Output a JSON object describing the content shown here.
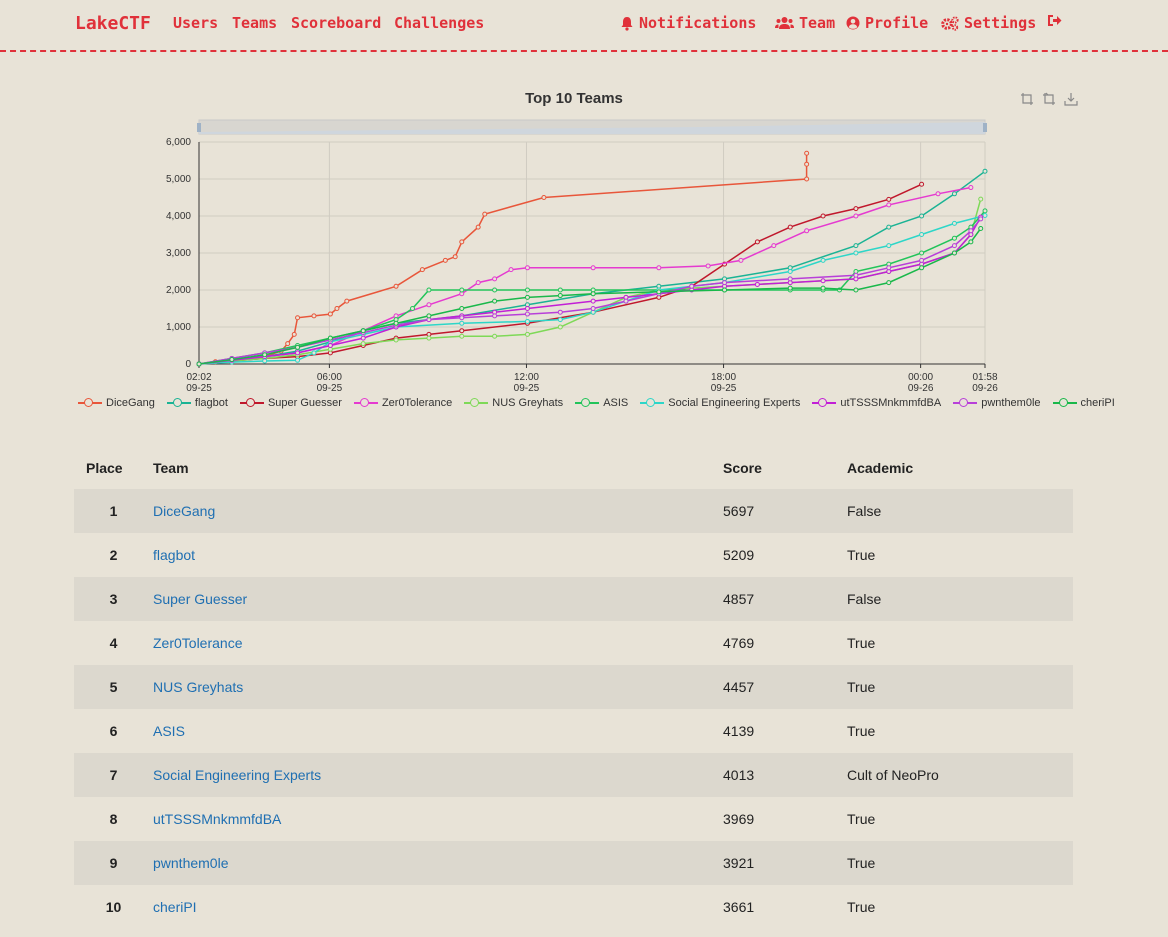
{
  "nav": {
    "brand": "LakeCTF",
    "left_links": [
      "Users",
      "Teams",
      "Scoreboard",
      "Challenges"
    ],
    "right_links": [
      {
        "label": "Notifications",
        "icon": "bell-icon"
      },
      {
        "label": "Team",
        "icon": "users-icon"
      },
      {
        "label": "Profile",
        "icon": "user-circle-icon"
      },
      {
        "label": "Settings",
        "icon": "gears-icon"
      },
      {
        "label": "",
        "icon": "logout-icon"
      }
    ]
  },
  "chart_data": {
    "type": "line",
    "title": "Top 10 Teams",
    "ylim": [
      0,
      6000
    ],
    "yticks": [
      "0",
      "1,000",
      "2,000",
      "3,000",
      "4,000",
      "5,000",
      "6,000"
    ],
    "xticks": [
      {
        "time": "02:02",
        "date": "09-25",
        "h": 0
      },
      {
        "time": "06:00",
        "date": "09-25",
        "h": 3.97
      },
      {
        "time": "12:00",
        "date": "09-25",
        "h": 9.97
      },
      {
        "time": "18:00",
        "date": "09-25",
        "h": 15.97
      },
      {
        "time": "00:00",
        "date": "09-26",
        "h": 21.97
      },
      {
        "time": "01:58",
        "date": "09-26",
        "h": 23.93
      }
    ],
    "grid": true,
    "legend": "bottom",
    "series": [
      {
        "name": "DiceGang",
        "color": "#e8563a",
        "points": [
          [
            0,
            0
          ],
          [
            0.5,
            60
          ],
          [
            1,
            120
          ],
          [
            2,
            200
          ],
          [
            2.5,
            350
          ],
          [
            2.7,
            550
          ],
          [
            2.9,
            800
          ],
          [
            3,
            1250
          ],
          [
            3.5,
            1300
          ],
          [
            4,
            1350
          ],
          [
            4.2,
            1500
          ],
          [
            4.5,
            1700
          ],
          [
            6,
            2100
          ],
          [
            6.8,
            2550
          ],
          [
            7.5,
            2800
          ],
          [
            7.8,
            2900
          ],
          [
            8,
            3300
          ],
          [
            8.5,
            3700
          ],
          [
            8.7,
            4050
          ],
          [
            10.5,
            4500
          ],
          [
            18.5,
            5000
          ],
          [
            18.5,
            5400
          ],
          [
            18.5,
            5697
          ]
        ]
      },
      {
        "name": "flagbot",
        "color": "#1ab394",
        "points": [
          [
            0,
            0
          ],
          [
            1,
            100
          ],
          [
            2,
            200
          ],
          [
            3,
            350
          ],
          [
            4,
            600
          ],
          [
            5,
            900
          ],
          [
            6,
            1100
          ],
          [
            8,
            1300
          ],
          [
            10,
            1600
          ],
          [
            12,
            1900
          ],
          [
            14,
            2100
          ],
          [
            16,
            2300
          ],
          [
            18,
            2600
          ],
          [
            20,
            3200
          ],
          [
            21,
            3700
          ],
          [
            22,
            4000
          ],
          [
            23,
            4600
          ],
          [
            23.93,
            5209
          ]
        ]
      },
      {
        "name": "Super Guesser",
        "color": "#c0182c",
        "points": [
          [
            0,
            0
          ],
          [
            1,
            80
          ],
          [
            2,
            150
          ],
          [
            3,
            200
          ],
          [
            4,
            300
          ],
          [
            5,
            500
          ],
          [
            6,
            700
          ],
          [
            7,
            800
          ],
          [
            8,
            900
          ],
          [
            10,
            1100
          ],
          [
            12,
            1400
          ],
          [
            14,
            1800
          ],
          [
            15,
            2100
          ],
          [
            16,
            2700
          ],
          [
            17,
            3300
          ],
          [
            18,
            3700
          ],
          [
            19,
            4000
          ],
          [
            20,
            4200
          ],
          [
            21,
            4450
          ],
          [
            22,
            4857
          ]
        ]
      },
      {
        "name": "Zer0Tolerance",
        "color": "#e53ad0",
        "points": [
          [
            0,
            0
          ],
          [
            1,
            100
          ],
          [
            2,
            200
          ],
          [
            3,
            300
          ],
          [
            4,
            500
          ],
          [
            5,
            900
          ],
          [
            6,
            1300
          ],
          [
            7,
            1600
          ],
          [
            8,
            1900
          ],
          [
            8.5,
            2200
          ],
          [
            9,
            2300
          ],
          [
            9.5,
            2550
          ],
          [
            10,
            2600
          ],
          [
            12,
            2600
          ],
          [
            14,
            2600
          ],
          [
            15.5,
            2650
          ],
          [
            16.5,
            2800
          ],
          [
            17.5,
            3200
          ],
          [
            18.5,
            3600
          ],
          [
            20,
            4000
          ],
          [
            21,
            4300
          ],
          [
            22.5,
            4600
          ],
          [
            23.5,
            4769
          ]
        ]
      },
      {
        "name": "NUS Greyhats",
        "color": "#7ed957",
        "points": [
          [
            0,
            0
          ],
          [
            1,
            80
          ],
          [
            2,
            150
          ],
          [
            3,
            250
          ],
          [
            4,
            400
          ],
          [
            5,
            550
          ],
          [
            6,
            650
          ],
          [
            7,
            700
          ],
          [
            8,
            750
          ],
          [
            9,
            750
          ],
          [
            10,
            800
          ],
          [
            11,
            1000
          ],
          [
            12,
            1400
          ],
          [
            13,
            1800
          ],
          [
            14,
            2000
          ],
          [
            16,
            2100
          ],
          [
            18,
            2200
          ],
          [
            20,
            2300
          ],
          [
            21,
            2500
          ],
          [
            22,
            2700
          ],
          [
            23,
            3000
          ],
          [
            23.5,
            3500
          ],
          [
            23.8,
            4457
          ]
        ]
      },
      {
        "name": "ASIS",
        "color": "#22c45a",
        "points": [
          [
            0,
            0
          ],
          [
            1,
            150
          ],
          [
            2,
            300
          ],
          [
            3,
            500
          ],
          [
            4,
            700
          ],
          [
            5,
            900
          ],
          [
            6,
            1200
          ],
          [
            6.5,
            1500
          ],
          [
            7,
            2000
          ],
          [
            8,
            2000
          ],
          [
            9,
            2000
          ],
          [
            10,
            2000
          ],
          [
            11,
            2000
          ],
          [
            12,
            2000
          ],
          [
            14,
            2000
          ],
          [
            16,
            2000
          ],
          [
            18,
            2000
          ],
          [
            19,
            2000
          ],
          [
            19.5,
            2000
          ],
          [
            20,
            2500
          ],
          [
            21,
            2700
          ],
          [
            22,
            3000
          ],
          [
            23,
            3400
          ],
          [
            23.5,
            3700
          ],
          [
            23.93,
            4139
          ]
        ]
      },
      {
        "name": "Social Engineering Experts",
        "color": "#2dd6c8",
        "points": [
          [
            0,
            0
          ],
          [
            1,
            50
          ],
          [
            2,
            80
          ],
          [
            3,
            100
          ],
          [
            3.5,
            300
          ],
          [
            4,
            600
          ],
          [
            5,
            800
          ],
          [
            6,
            1000
          ],
          [
            8,
            1100
          ],
          [
            10,
            1150
          ],
          [
            11,
            1200
          ],
          [
            12,
            1400
          ],
          [
            13,
            1700
          ],
          [
            14,
            2000
          ],
          [
            16,
            2200
          ],
          [
            18,
            2500
          ],
          [
            19,
            2800
          ],
          [
            20,
            3000
          ],
          [
            21,
            3200
          ],
          [
            22,
            3500
          ],
          [
            23,
            3800
          ],
          [
            23.93,
            4013
          ]
        ]
      },
      {
        "name": "utTSSSMnkmmfdBA",
        "color": "#c21fd6",
        "points": [
          [
            0,
            0
          ],
          [
            1,
            100
          ],
          [
            2,
            200
          ],
          [
            3,
            300
          ],
          [
            4,
            500
          ],
          [
            5,
            700
          ],
          [
            6,
            1000
          ],
          [
            7,
            1200
          ],
          [
            8,
            1300
          ],
          [
            9,
            1400
          ],
          [
            10,
            1500
          ],
          [
            12,
            1700
          ],
          [
            13,
            1800
          ],
          [
            14,
            1900
          ],
          [
            15,
            2000
          ],
          [
            16,
            2100
          ],
          [
            17,
            2150
          ],
          [
            18,
            2200
          ],
          [
            19,
            2250
          ],
          [
            20,
            2300
          ],
          [
            21,
            2500
          ],
          [
            22,
            2700
          ],
          [
            23,
            3000
          ],
          [
            23.5,
            3500
          ],
          [
            23.8,
            3969
          ]
        ]
      },
      {
        "name": "pwnthem0le",
        "color": "#b83fd9",
        "points": [
          [
            0,
            0
          ],
          [
            1,
            150
          ],
          [
            2,
            300
          ],
          [
            3,
            450
          ],
          [
            4,
            650
          ],
          [
            5,
            850
          ],
          [
            6,
            1050
          ],
          [
            7,
            1200
          ],
          [
            8,
            1250
          ],
          [
            9,
            1300
          ],
          [
            10,
            1350
          ],
          [
            11,
            1400
          ],
          [
            12,
            1500
          ],
          [
            13,
            1700
          ],
          [
            14,
            1900
          ],
          [
            15,
            2100
          ],
          [
            16,
            2200
          ],
          [
            18,
            2300
          ],
          [
            20,
            2400
          ],
          [
            21,
            2600
          ],
          [
            22,
            2800
          ],
          [
            23,
            3200
          ],
          [
            23.5,
            3600
          ],
          [
            23.8,
            3921
          ]
        ]
      },
      {
        "name": "cheriPI",
        "color": "#19b84a",
        "points": [
          [
            0,
            0
          ],
          [
            1,
            120
          ],
          [
            2,
            250
          ],
          [
            3,
            450
          ],
          [
            4,
            700
          ],
          [
            5,
            900
          ],
          [
            6,
            1100
          ],
          [
            7,
            1300
          ],
          [
            8,
            1500
          ],
          [
            9,
            1700
          ],
          [
            10,
            1800
          ],
          [
            11,
            1850
          ],
          [
            12,
            1900
          ],
          [
            14,
            1950
          ],
          [
            16,
            2000
          ],
          [
            18,
            2050
          ],
          [
            19,
            2050
          ],
          [
            20,
            2000
          ],
          [
            21,
            2200
          ],
          [
            22,
            2600
          ],
          [
            23,
            3000
          ],
          [
            23.5,
            3300
          ],
          [
            23.8,
            3661
          ]
        ]
      }
    ]
  },
  "table": {
    "headers": [
      "Place",
      "Team",
      "Score",
      "Academic"
    ],
    "rows": [
      {
        "place": "1",
        "team": "DiceGang",
        "score": "5697",
        "academic": "False"
      },
      {
        "place": "2",
        "team": "flagbot",
        "score": "5209",
        "academic": "True"
      },
      {
        "place": "3",
        "team": "Super Guesser",
        "score": "4857",
        "academic": "False"
      },
      {
        "place": "4",
        "team": "Zer0Tolerance",
        "score": "4769",
        "academic": "True"
      },
      {
        "place": "5",
        "team": "NUS Greyhats",
        "score": "4457",
        "academic": "True"
      },
      {
        "place": "6",
        "team": "ASIS",
        "score": "4139",
        "academic": "True"
      },
      {
        "place": "7",
        "team": "Social Engineering Experts",
        "score": "4013",
        "academic": "Cult of NeoPro"
      },
      {
        "place": "8",
        "team": "utTSSSMnkmmfdBA",
        "score": "3969",
        "academic": "True"
      },
      {
        "place": "9",
        "team": "pwnthem0le",
        "score": "3921",
        "academic": "True"
      },
      {
        "place": "10",
        "team": "cheriPI",
        "score": "3661",
        "academic": "True"
      }
    ]
  }
}
